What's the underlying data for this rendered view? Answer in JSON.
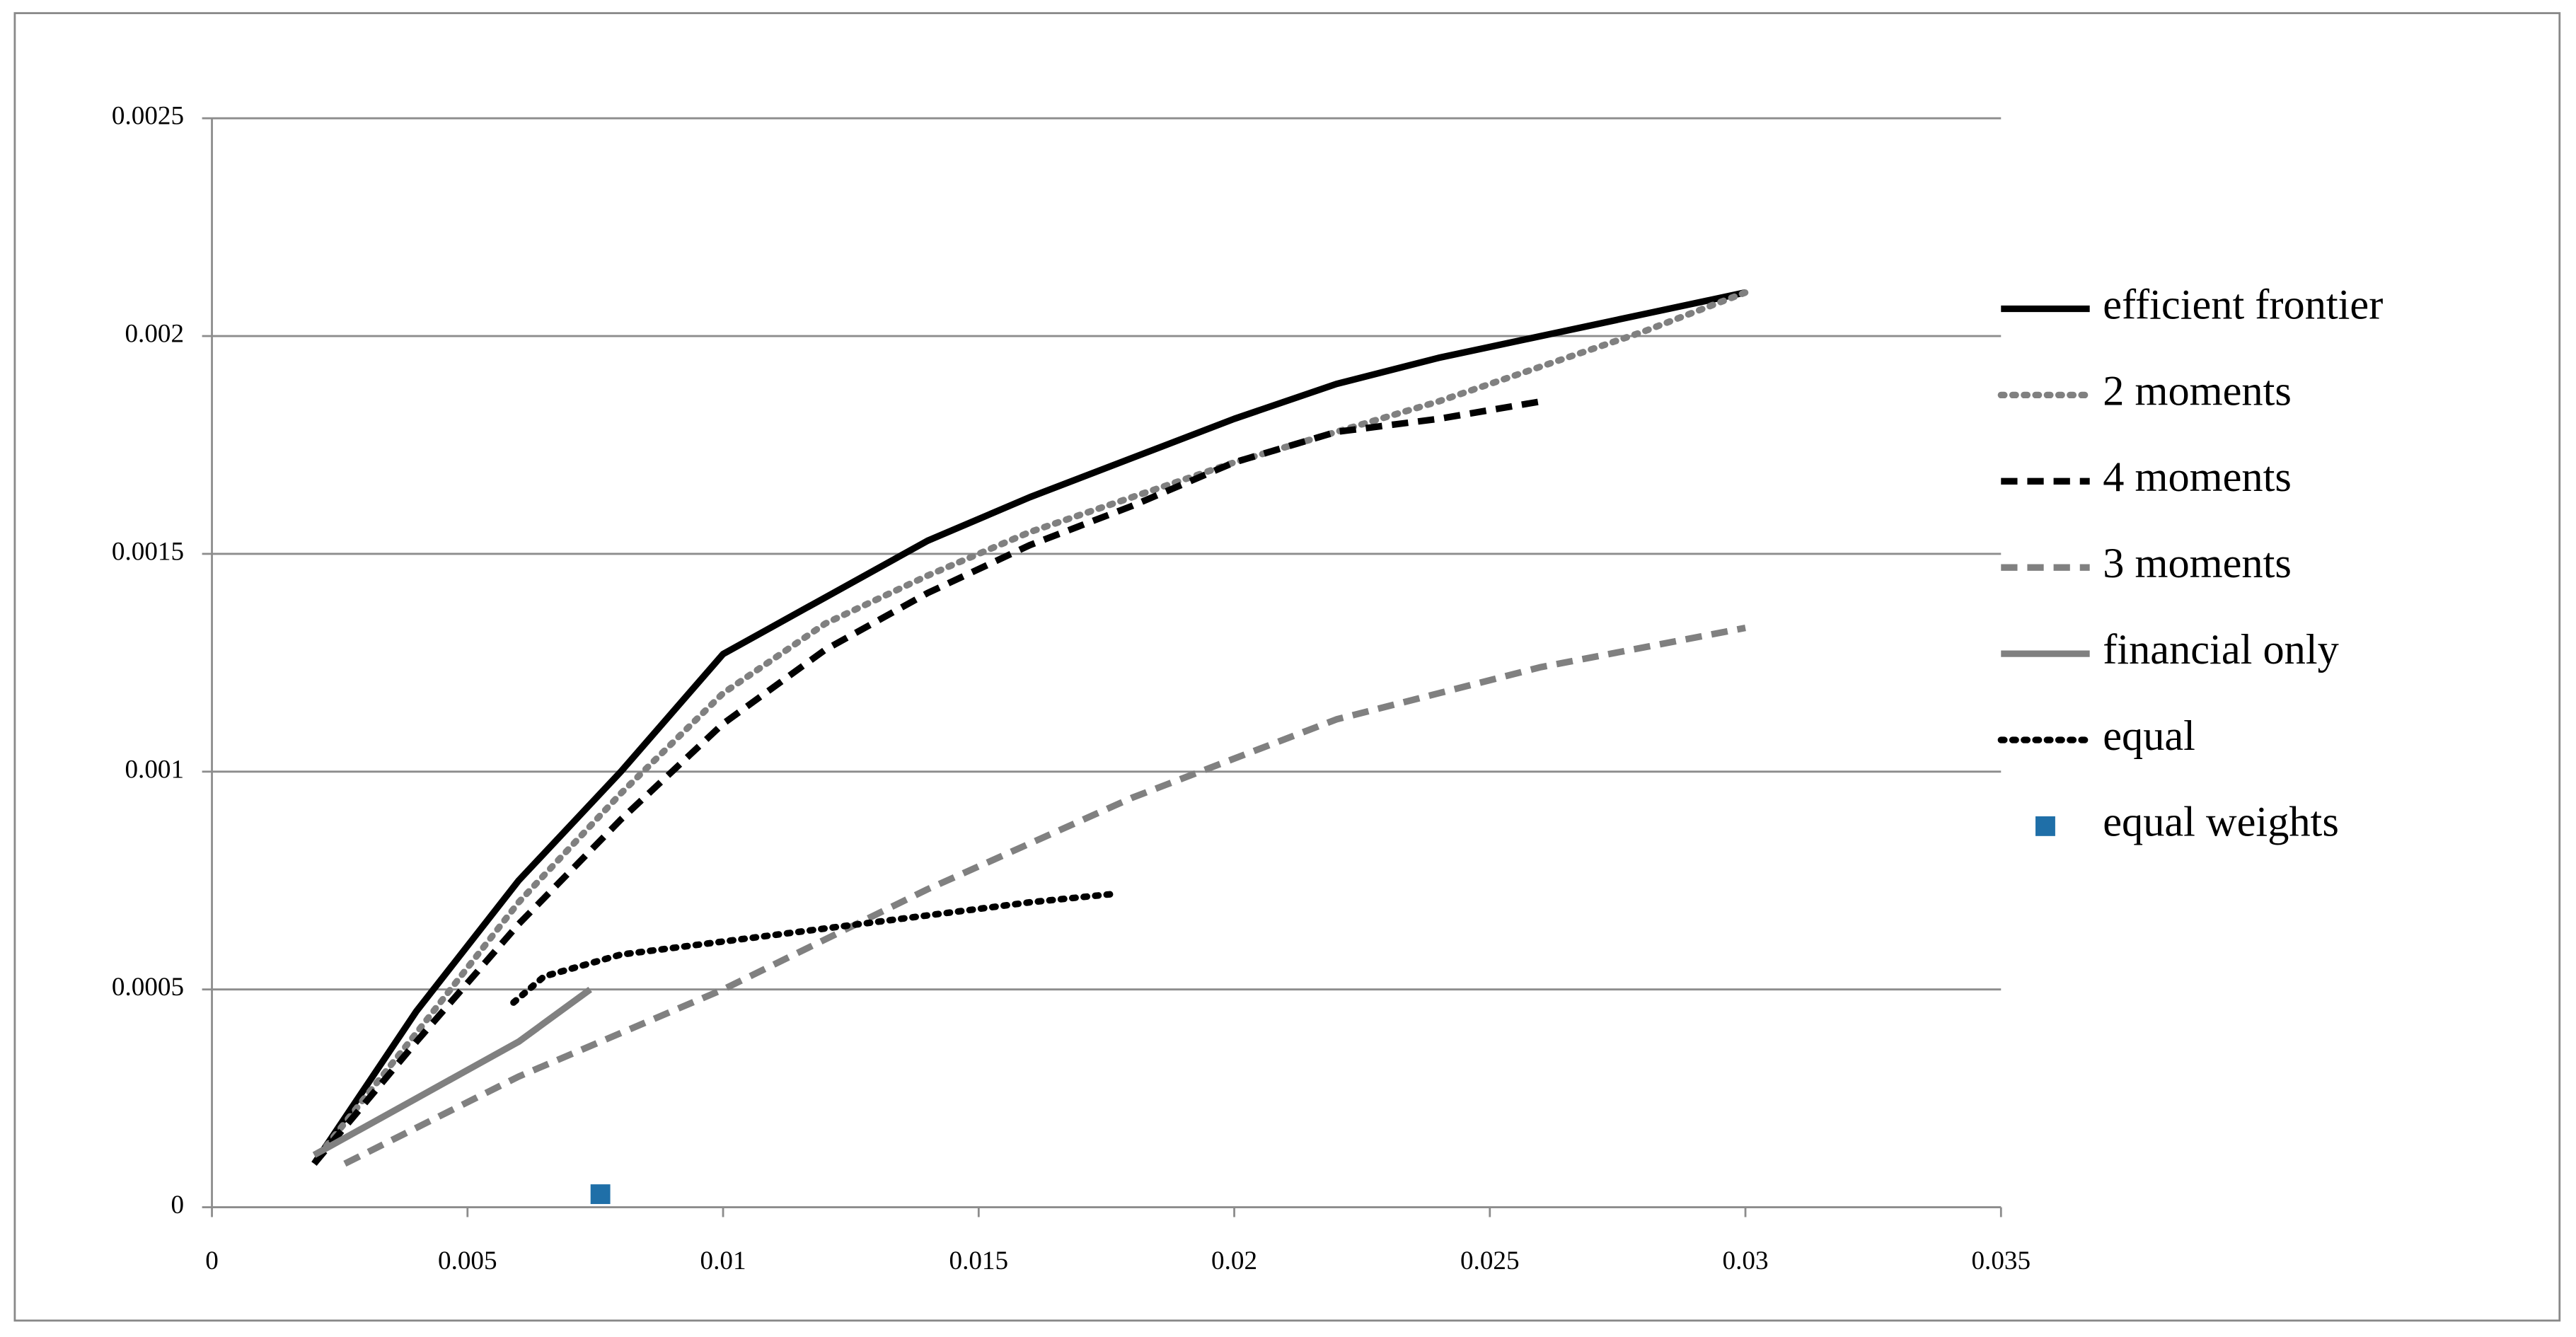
{
  "chart_data": {
    "type": "line",
    "xlim": [
      0,
      0.035
    ],
    "xticks": [
      0,
      0.005,
      0.01,
      0.015,
      0.02,
      0.025,
      0.03,
      0.035
    ],
    "ylim": [
      0,
      0.0025
    ],
    "yticks": [
      0,
      0.0005,
      0.001,
      0.0015,
      0.002,
      0.0025
    ],
    "grid": true,
    "legend": "right",
    "series": [
      {
        "name": "efficient frontier",
        "color": "#000000",
        "dash": "solid",
        "x": [
          0.002,
          0.004,
          0.006,
          0.008,
          0.01,
          0.012,
          0.014,
          0.016,
          0.018,
          0.02,
          0.022,
          0.024,
          0.026,
          0.028,
          0.03
        ],
        "values": [
          0.0001,
          0.00045,
          0.00075,
          0.001,
          0.00127,
          0.0014,
          0.00153,
          0.00163,
          0.00172,
          0.00181,
          0.00189,
          0.00195,
          0.002,
          0.00205,
          0.0021
        ]
      },
      {
        "name": "2 moments",
        "color": "#808080",
        "dash": "dotted",
        "x": [
          0.0021,
          0.004,
          0.006,
          0.008,
          0.01,
          0.012,
          0.014,
          0.016,
          0.018,
          0.02,
          0.022,
          0.024,
          0.026,
          0.028,
          0.03
        ],
        "values": [
          0.00012,
          0.0004,
          0.0007,
          0.00095,
          0.00118,
          0.00134,
          0.00145,
          0.00155,
          0.00163,
          0.00171,
          0.00178,
          0.00185,
          0.00193,
          0.00201,
          0.0021
        ]
      },
      {
        "name": "4 moments",
        "color": "#000000",
        "dash": "dashed",
        "x": [
          0.002,
          0.004,
          0.006,
          0.008,
          0.01,
          0.012,
          0.014,
          0.016,
          0.018,
          0.02,
          0.022,
          0.024,
          0.026
        ],
        "values": [
          0.0001,
          0.00038,
          0.00065,
          0.00089,
          0.00111,
          0.00128,
          0.00141,
          0.00152,
          0.00161,
          0.00171,
          0.00178,
          0.00181,
          0.00185
        ]
      },
      {
        "name": "3 moments",
        "color": "#808080",
        "dash": "dashed",
        "x": [
          0.0026,
          0.006,
          0.01,
          0.014,
          0.018,
          0.022,
          0.026,
          0.03
        ],
        "values": [
          0.0001,
          0.0003,
          0.0005,
          0.00073,
          0.00094,
          0.00112,
          0.00124,
          0.00133
        ]
      },
      {
        "name": "financial only",
        "color": "#808080",
        "dash": "solid",
        "x": [
          0.002,
          0.004,
          0.006,
          0.0074
        ],
        "values": [
          0.00012,
          0.00025,
          0.00038,
          0.0005
        ]
      },
      {
        "name": "equal",
        "color": "#000000",
        "dash": "dotted",
        "x": [
          0.0059,
          0.0065,
          0.008,
          0.01,
          0.012,
          0.014,
          0.016,
          0.0177
        ],
        "values": [
          0.00047,
          0.00053,
          0.00058,
          0.00061,
          0.00064,
          0.00067,
          0.0007,
          0.00072
        ]
      },
      {
        "name": "equal weights",
        "color": "#1f6fa8",
        "dash": "marker",
        "x": [
          0.0076
        ],
        "values": [
          3e-05
        ]
      }
    ]
  }
}
